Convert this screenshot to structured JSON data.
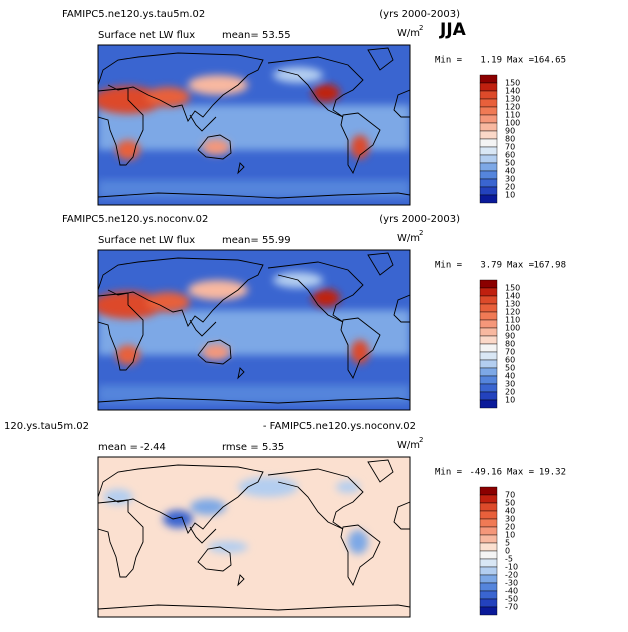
{
  "season": "JJA",
  "panels": [
    {
      "title": "FAMIPC5.ne120.ys.tau5m.02",
      "years": "(yrs 2000-2003)",
      "field": "Surface net LW flux",
      "stat_label": "mean=",
      "stat_value": 53.55,
      "units": "W/m",
      "units_exp": "2",
      "min_label": "Min =",
      "min": 1.19,
      "max_label": "Max =",
      "max": 164.65,
      "colorbar": {
        "labels": [
          150,
          140,
          130,
          120,
          110,
          100,
          90,
          80,
          70,
          60,
          50,
          40,
          30,
          20,
          10
        ],
        "colors": [
          "#8b0000",
          "#c0200f",
          "#dd4a2a",
          "#e8603b",
          "#f07a55",
          "#f5977a",
          "#f8b8a0",
          "#fbd8c8",
          "#f4f4f4",
          "#d9e7f5",
          "#b3cef0",
          "#7da8e6",
          "#5585dc",
          "#3a65d0",
          "#2342bd",
          "#0a1a99"
        ]
      }
    },
    {
      "title": "FAMIPC5.ne120.ys.noconv.02",
      "years": "(yrs 2000-2003)",
      "field": "Surface net LW flux",
      "stat_label": "mean=",
      "stat_value": 55.99,
      "units": "W/m",
      "units_exp": "2",
      "min_label": "Min =",
      "min": 3.79,
      "max_label": "Max =",
      "max": 167.98,
      "colorbar": {
        "labels": [
          150,
          140,
          130,
          120,
          110,
          100,
          90,
          80,
          70,
          60,
          50,
          40,
          30,
          20,
          10
        ],
        "colors": [
          "#8b0000",
          "#c0200f",
          "#dd4a2a",
          "#e8603b",
          "#f07a55",
          "#f5977a",
          "#f8b8a0",
          "#fbd8c8",
          "#f4f4f4",
          "#d9e7f5",
          "#b3cef0",
          "#7da8e6",
          "#5585dc",
          "#3a65d0",
          "#2342bd",
          "#0a1a99"
        ]
      }
    },
    {
      "title": "120.ys.tau5m.02",
      "years": "- FAMIPC5.ne120.ys.noconv.02",
      "stat_label": "mean =",
      "stat_value": -2.44,
      "rmse_label": "rmse =",
      "rmse_value": 5.35,
      "units": "W/m",
      "units_exp": "2",
      "min_label": "Min =",
      "min": -49.16,
      "max_label": "Max =",
      "max": 19.32,
      "colorbar": {
        "labels": [
          70,
          50,
          40,
          30,
          20,
          10,
          5,
          0,
          -5,
          -10,
          -20,
          -30,
          -40,
          -50,
          -70
        ],
        "colors": [
          "#8b0000",
          "#c0200f",
          "#dd4a2a",
          "#e8603b",
          "#f07a55",
          "#f5977a",
          "#f8b8a0",
          "#fbe0d0",
          "#f4f4f4",
          "#d9e7f5",
          "#b3cef0",
          "#7da8e6",
          "#5585dc",
          "#3a65d0",
          "#2342bd",
          "#0a1a99"
        ]
      }
    }
  ]
}
